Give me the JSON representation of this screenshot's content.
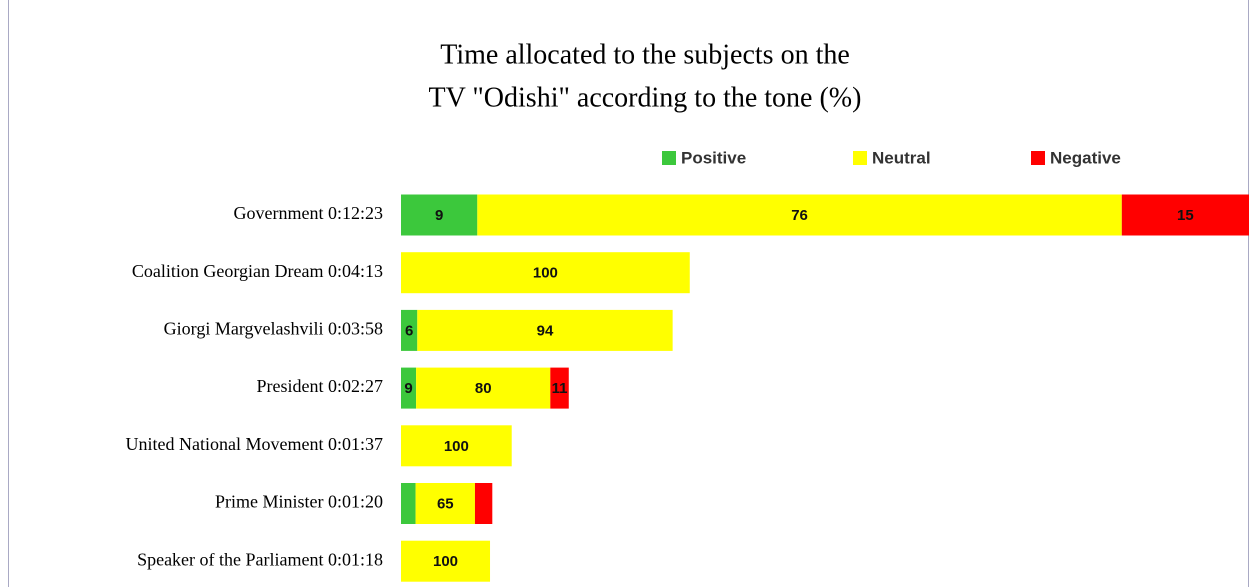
{
  "chart_data": {
    "type": "bar_stacked_horizontal",
    "title": [
      "Time allocated to the subjects on the",
      "TV \"Odishi\" according to the tone (%)"
    ],
    "categories": [
      "Government 0:12:23",
      "Coalition Georgian Dream 0:04:13",
      "Giorgi Margvelashvili 0:03:58",
      "President 0:02:27",
      "United National Movement 0:01:37",
      "Prime Minister 0:01:20",
      "Speaker of the Parliament 0:01:18"
    ],
    "series": [
      {
        "name": "Positive",
        "color": "#3cc83c",
        "values": [
          9,
          null,
          6,
          9,
          null,
          16,
          null
        ],
        "value_labels": [
          "9",
          null,
          "6",
          "9",
          null,
          null,
          null
        ]
      },
      {
        "name": "Neutral",
        "color": "#ffff00",
        "values": [
          76,
          100,
          94,
          80,
          100,
          65,
          100
        ],
        "value_labels": [
          "76",
          "100",
          "94",
          "80",
          "100",
          "65",
          "100"
        ]
      },
      {
        "name": "Negative",
        "color": "#ff0000",
        "values": [
          15,
          null,
          null,
          11,
          null,
          19,
          null
        ],
        "value_labels": [
          "15",
          null,
          null,
          "11",
          null,
          null,
          null
        ]
      }
    ],
    "legend": "top"
  }
}
